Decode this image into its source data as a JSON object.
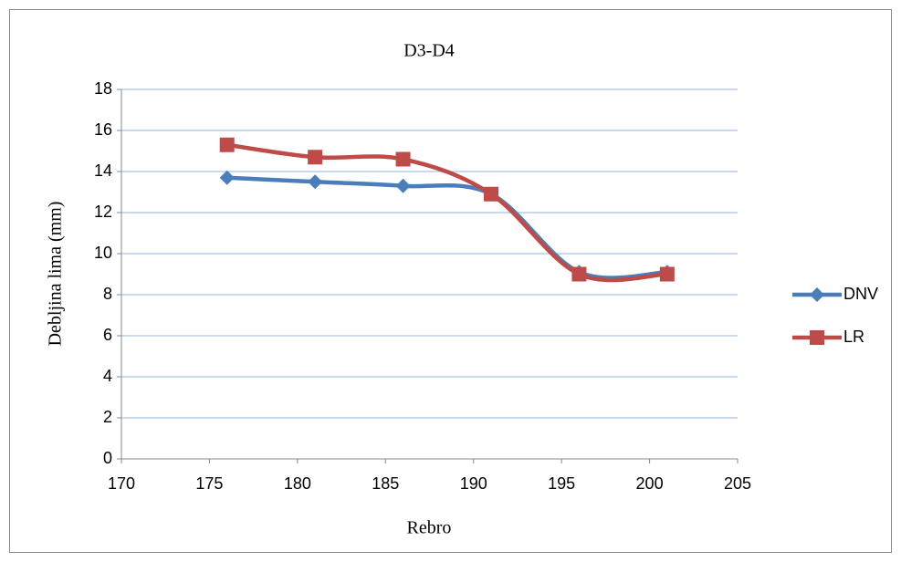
{
  "chart_data": {
    "type": "scatter",
    "title": "D3-D4",
    "x_label": "Rebro",
    "y_label": "Debljina lima (mm)",
    "x": [
      176,
      181,
      186,
      191,
      196,
      201
    ],
    "series": [
      {
        "name": "DNV",
        "color": "#4a7ebb",
        "marker": "diamond",
        "values": [
          13.7,
          13.5,
          13.3,
          12.9,
          9.1,
          9.1
        ]
      },
      {
        "name": "LR",
        "color": "#be4b48",
        "marker": "square",
        "values": [
          15.3,
          14.7,
          14.6,
          12.9,
          9.0,
          9.0
        ]
      }
    ],
    "xlim": [
      170,
      205
    ],
    "xticks": [
      170,
      175,
      180,
      185,
      190,
      195,
      200,
      205
    ],
    "ylim": [
      0,
      18
    ],
    "yticks": [
      0,
      2,
      4,
      6,
      8,
      10,
      12,
      14,
      16,
      18
    ],
    "grid": true,
    "smooth": true,
    "legend": "right"
  }
}
